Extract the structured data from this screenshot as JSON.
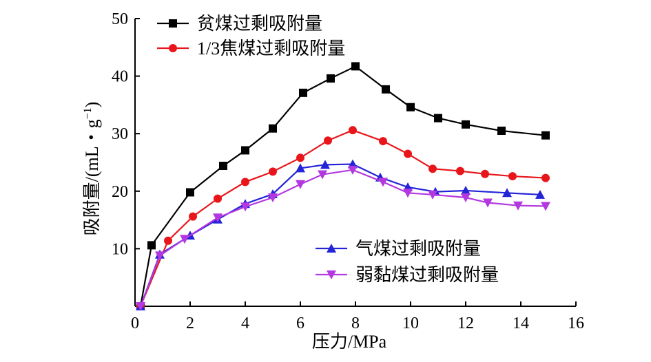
{
  "chart_data": {
    "type": "line",
    "xlabel": "压力/MPa",
    "ylabel_main": "吸附量/(mL・g",
    "ylabel_sup": "−1",
    "ylabel_close": ")",
    "xlim": [
      0,
      16
    ],
    "ylim": [
      0,
      50
    ],
    "x_ticks": [
      0,
      2,
      4,
      6,
      8,
      10,
      12,
      14,
      16
    ],
    "y_ticks": [
      10,
      20,
      30,
      40,
      50
    ],
    "grid": false,
    "legend": [
      {
        "placement": "top-left",
        "series": [
          0,
          1
        ]
      },
      {
        "placement": "bottom-right",
        "series": [
          2,
          3
        ]
      }
    ],
    "series": [
      {
        "name": "贫煤过剩吸附量",
        "color": "#000000",
        "marker": "square",
        "x": [
          0.2,
          0.6,
          2.0,
          3.2,
          4.0,
          5.0,
          6.1,
          7.1,
          8.0,
          9.1,
          10.0,
          11.0,
          12.0,
          13.3,
          14.9
        ],
        "y": [
          0,
          10.6,
          19.8,
          24.4,
          27.1,
          30.9,
          37.1,
          39.6,
          41.7,
          37.7,
          34.6,
          32.7,
          31.6,
          30.5,
          29.7
        ]
      },
      {
        "name": "1/3焦煤过剩吸附量",
        "color": "#e8161b",
        "marker": "circle",
        "x": [
          0.2,
          1.2,
          2.1,
          3.0,
          4.0,
          5.0,
          6.0,
          7.0,
          7.9,
          9.0,
          9.9,
          10.8,
          11.8,
          12.7,
          13.7,
          14.9
        ],
        "y": [
          0,
          11.4,
          15.6,
          18.7,
          21.6,
          23.4,
          25.8,
          28.8,
          30.6,
          28.7,
          26.5,
          23.9,
          23.5,
          23.0,
          22.6,
          22.3
        ]
      },
      {
        "name": "气煤过剩吸附量",
        "color": "#2323d8",
        "marker": "triangle-up",
        "x": [
          0.2,
          0.9,
          2.0,
          3.0,
          4.0,
          5.0,
          6.0,
          6.9,
          7.9,
          8.9,
          9.9,
          10.9,
          12.0,
          13.5,
          14.7
        ],
        "y": [
          0,
          9.0,
          12.3,
          15.1,
          17.8,
          19.5,
          24.0,
          24.6,
          24.7,
          22.4,
          20.7,
          19.9,
          20.1,
          19.7,
          19.4
        ]
      },
      {
        "name": "弱黏煤过剩吸附量",
        "color": "#b338e0",
        "marker": "triangle-down",
        "x": [
          0.2,
          0.9,
          1.8,
          3.0,
          4.0,
          5.0,
          6.0,
          6.8,
          7.9,
          9.0,
          9.9,
          10.8,
          12.0,
          12.8,
          13.9,
          14.9
        ],
        "y": [
          0,
          8.8,
          11.7,
          15.4,
          17.3,
          18.9,
          21.2,
          22.9,
          23.7,
          21.6,
          19.7,
          19.4,
          18.9,
          18.0,
          17.5,
          17.4
        ]
      }
    ]
  }
}
